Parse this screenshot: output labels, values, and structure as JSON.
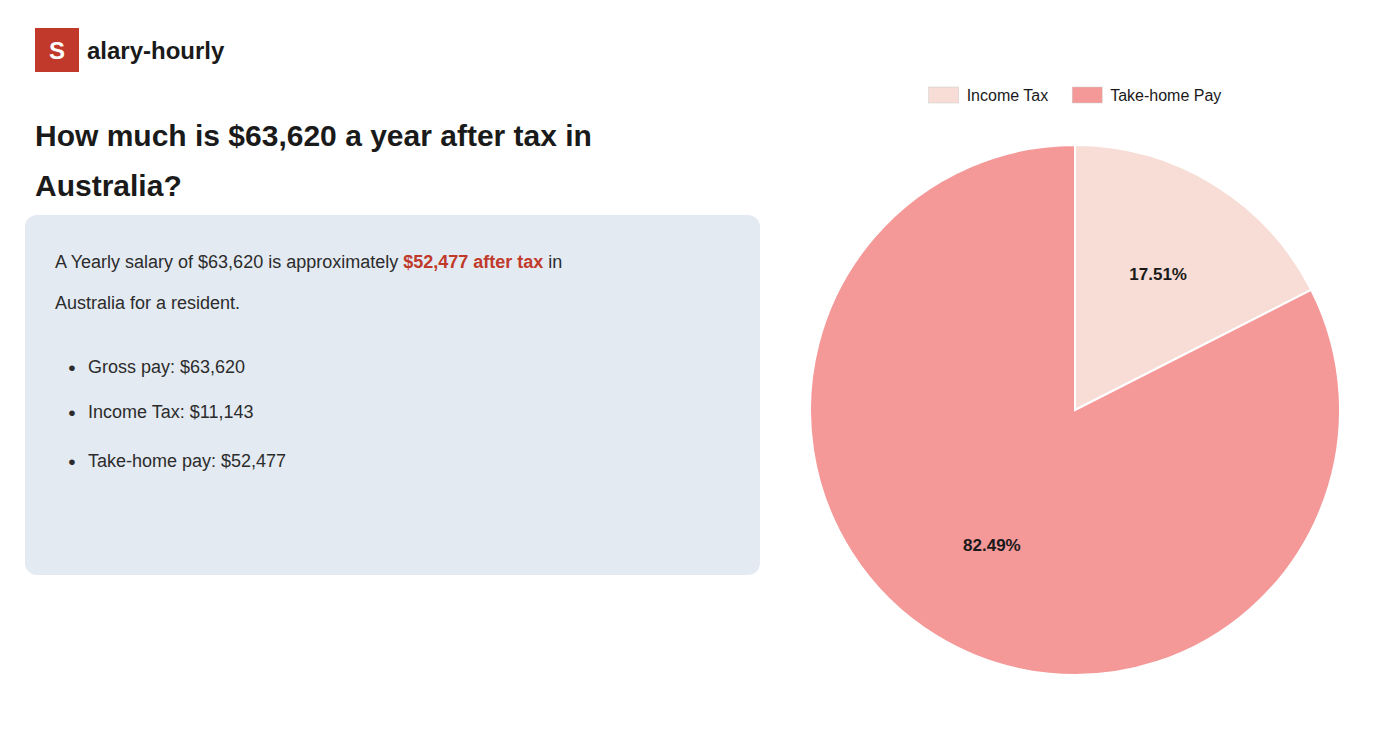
{
  "chart_data": {
    "type": "pie",
    "title": [
      "How much is $63,620 a year after tax in",
      "Australia?"
    ],
    "annotations": [
      [
        {
          "text": "S",
          "color": "#c0392b"
        },
        {
          "text": "alary-hourly"
        }
      ],
      [
        {
          "text": "A Yearly salary of $63,620 is approximately "
        },
        {
          "text": "$52,477 after tax",
          "color": "#c0392b"
        },
        {
          "text": " in"
        }
      ],
      [
        {
          "text": "Australia for a resident."
        }
      ],
      [
        {
          "text": "•"
        },
        {
          "text": "Gross pay: $63,620"
        }
      ],
      [
        {
          "text": "•"
        },
        {
          "text": "Income Tax: $11,143"
        }
      ],
      [
        {
          "text": "•"
        },
        {
          "text": "Take-home pay: $52,477"
        }
      ]
    ],
    "categories": [
      "Income Tax",
      "Take-home Pay"
    ],
    "values": [
      17.51,
      82.49
    ],
    "value_labels": [
      "17.51%",
      "82.49%"
    ],
    "data_labels": true,
    "colors": [
      "#f7ddd5",
      "#f49898"
    ],
    "legend": "top"
  }
}
